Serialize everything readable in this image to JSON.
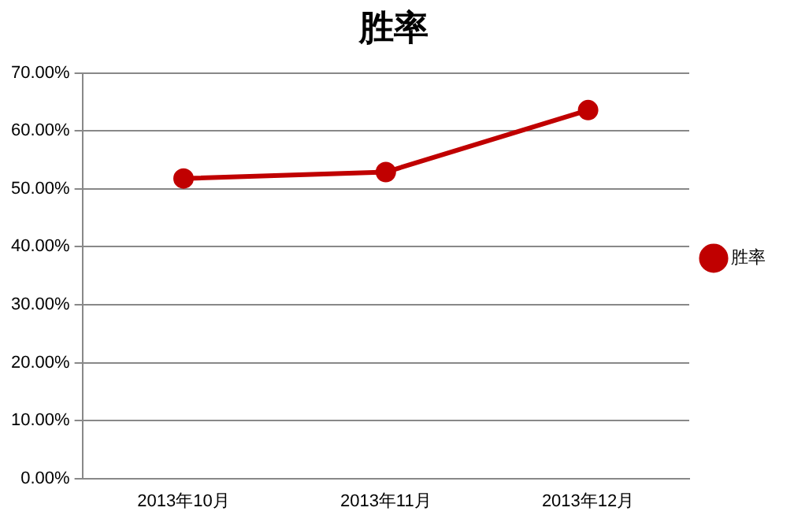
{
  "chart_data": {
    "type": "line",
    "title": "胜率",
    "categories": [
      "2013年10月",
      "2013年11月",
      "2013年12月"
    ],
    "series": [
      {
        "name": "胜率",
        "color": "#c00000",
        "values": [
          51.8,
          52.9,
          63.6
        ]
      }
    ],
    "ylim": [
      0,
      70
    ],
    "yticks": [
      {
        "value": 0,
        "label": "0.00%"
      },
      {
        "value": 10,
        "label": "10.00%"
      },
      {
        "value": 20,
        "label": "20.00%"
      },
      {
        "value": 30,
        "label": "30.00%"
      },
      {
        "value": 40,
        "label": "40.00%"
      },
      {
        "value": 50,
        "label": "50.00%"
      },
      {
        "value": 60,
        "label": "60.00%"
      },
      {
        "value": 70,
        "label": "70.00%"
      }
    ],
    "grid": "y",
    "legend": "right",
    "marker": "circle",
    "line_style": "solid"
  }
}
